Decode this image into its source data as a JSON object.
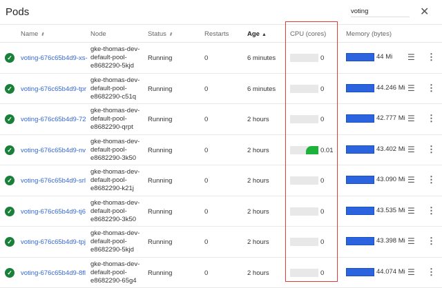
{
  "title": "Pods",
  "search": {
    "value": "voting"
  },
  "columns": {
    "name": "Name",
    "node": "Node",
    "status": "Status",
    "restarts": "Restarts",
    "age": "Age",
    "cpu": "CPU (cores)",
    "memory": "Memory (bytes)"
  },
  "rows": [
    {
      "name": "voting-676c65b4d9-xs-",
      "node": "gke-thomas-dev-default-pool-e8682290-5kjd",
      "status": "Running",
      "restarts": "0",
      "age": "6 minutes",
      "cpu": "0",
      "cpu_fraction": 0,
      "memory": "44 Mi"
    },
    {
      "name": "voting-676c65b4d9-tpr",
      "node": "gke-thomas-dev-default-pool-e8682290-c51q",
      "status": "Running",
      "restarts": "0",
      "age": "6 minutes",
      "cpu": "0",
      "cpu_fraction": 0,
      "memory": "44.246 Mi"
    },
    {
      "name": "voting-676c65b4d9-72",
      "node": "gke-thomas-dev-default-pool-e8682290-qrpt",
      "status": "Running",
      "restarts": "0",
      "age": "2 hours",
      "cpu": "0",
      "cpu_fraction": 0,
      "memory": "42.777 Mi"
    },
    {
      "name": "voting-676c65b4d9-nv",
      "node": "gke-thomas-dev-default-pool-e8682290-3k50",
      "status": "Running",
      "restarts": "0",
      "age": "2 hours",
      "cpu": "0.01",
      "cpu_fraction": 0.45,
      "memory": "43.402 Mi"
    },
    {
      "name": "voting-676c65b4d9-srl",
      "node": "gke-thomas-dev-default-pool-e8682290-k21j",
      "status": "Running",
      "restarts": "0",
      "age": "2 hours",
      "cpu": "0",
      "cpu_fraction": 0,
      "memory": "43.090 Mi"
    },
    {
      "name": "voting-676c65b4d9-tj6",
      "node": "gke-thomas-dev-default-pool-e8682290-3k50",
      "status": "Running",
      "restarts": "0",
      "age": "2 hours",
      "cpu": "0",
      "cpu_fraction": 0,
      "memory": "43.535 Mi"
    },
    {
      "name": "voting-676c65b4d9-tpj",
      "node": "gke-thomas-dev-default-pool-e8682290-5kjd",
      "status": "Running",
      "restarts": "0",
      "age": "2 hours",
      "cpu": "0",
      "cpu_fraction": 0,
      "memory": "43.398 Mi"
    },
    {
      "name": "voting-676c65b4d9-8fl",
      "node": "gke-thomas-dev-default-pool-e8682290-65g4",
      "status": "Running",
      "restarts": "0",
      "age": "2 hours",
      "cpu": "0",
      "cpu_fraction": 0,
      "memory": "44.074 Mi"
    }
  ],
  "colors": {
    "link": "#3367d6",
    "ok": "#188038",
    "cpu": "#1db33a",
    "memory": "#2c63de",
    "highlight": "#e53935"
  }
}
